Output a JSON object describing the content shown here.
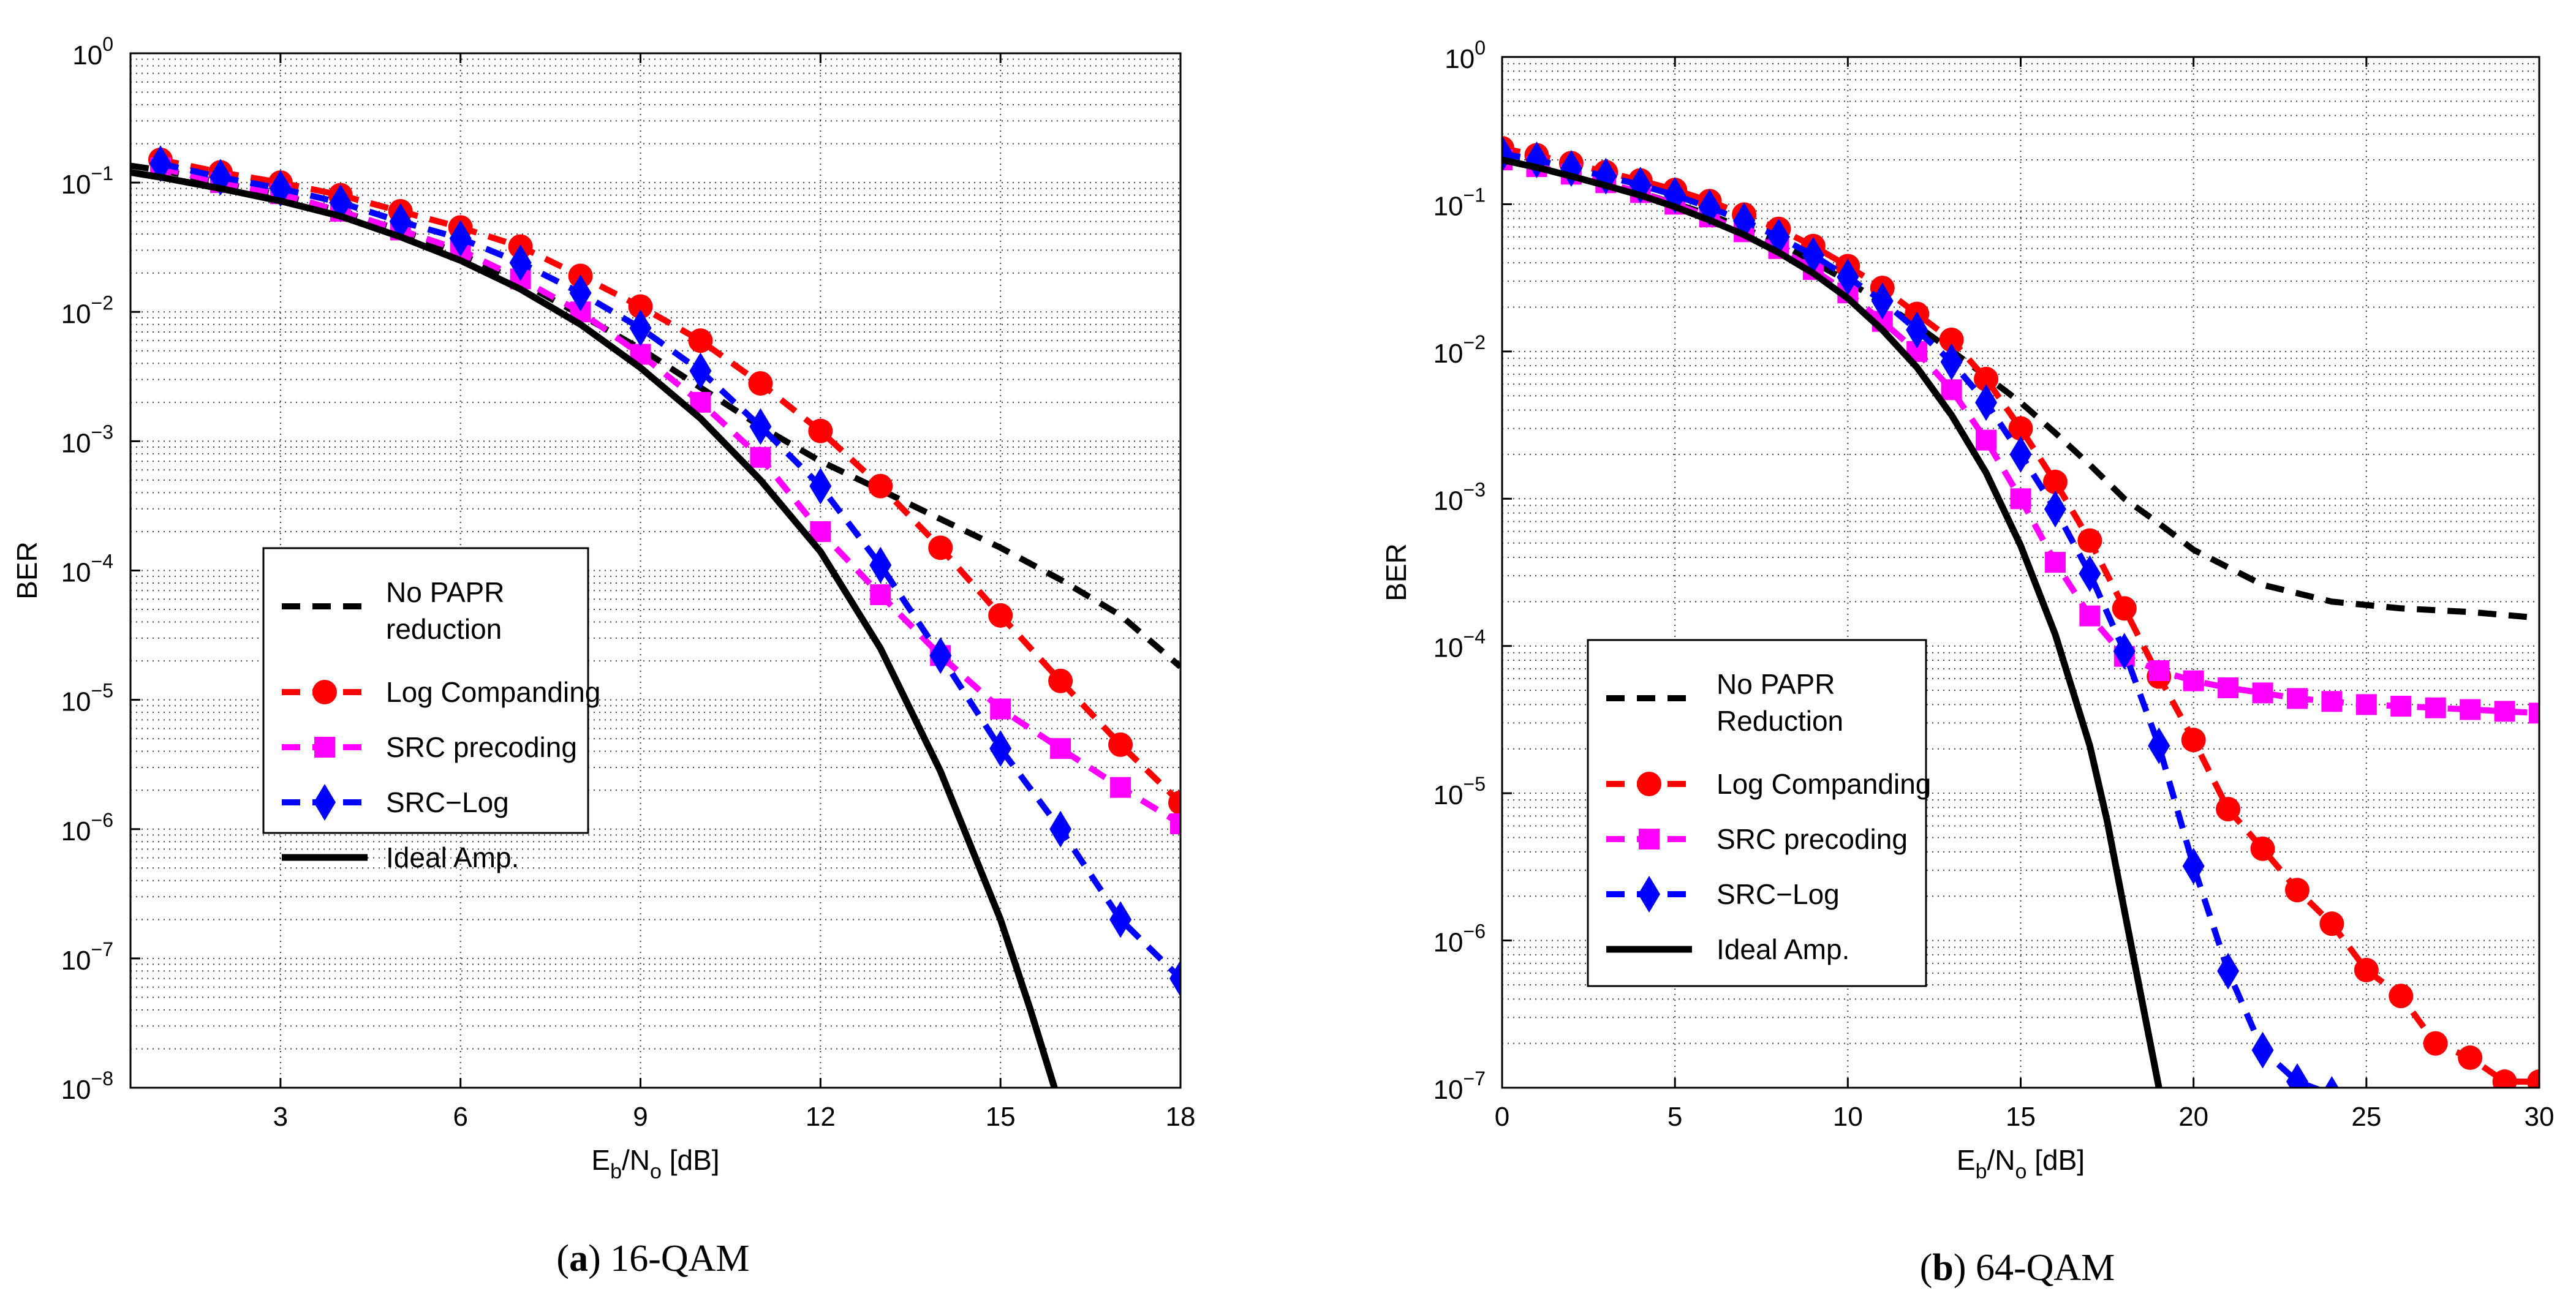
{
  "chart_data": [
    {
      "type": "line",
      "panel_label": "a",
      "caption": "16-QAM",
      "xlabel_base": "E",
      "xlabel_sub1": "b",
      "xlabel_mid": "/N",
      "xlabel_sub2": "o",
      "xlabel_unit": "[dB]",
      "ylabel": "BER",
      "yscale": "log",
      "xlim": [
        0.5,
        18
      ],
      "ylim": [
        1e-08,
        1
      ],
      "xticks": [
        3,
        6,
        9,
        12,
        15,
        18
      ],
      "ytick_exponents": [
        0,
        -1,
        -2,
        -3,
        -4,
        -5,
        -6,
        -7,
        -8
      ],
      "grid": true,
      "legend_position": "lower-left",
      "series": [
        {
          "name": "No PAPR reduction",
          "legend_lines": [
            "No PAPR",
            "reduction"
          ],
          "color": "#000000",
          "style": "dashed",
          "marker": "none",
          "x": [
            0.5,
            1,
            2,
            3,
            4,
            5,
            6,
            7,
            8,
            9,
            10,
            11,
            12,
            13,
            14,
            15,
            16,
            17,
            18
          ],
          "y": [
            0.135,
            0.125,
            0.1,
            0.08,
            0.06,
            0.043,
            0.028,
            0.017,
            0.0095,
            0.0052,
            0.0026,
            0.0013,
            0.0007,
            0.00042,
            0.00025,
            0.00015,
            8.5e-05,
            4.5e-05,
            1.8e-05
          ]
        },
        {
          "name": "Log Companding",
          "color": "#ff0000",
          "style": "dashed",
          "marker": "circle",
          "x": [
            1,
            2,
            3,
            4,
            5,
            6,
            7,
            8,
            9,
            10,
            11,
            12,
            13,
            14,
            15,
            16,
            17,
            18
          ],
          "y": [
            0.15,
            0.12,
            0.1,
            0.08,
            0.06,
            0.045,
            0.032,
            0.019,
            0.011,
            0.006,
            0.0028,
            0.0012,
            0.00045,
            0.00015,
            4.5e-05,
            1.4e-05,
            4.5e-06,
            1.6e-06
          ]
        },
        {
          "name": "SRC precoding",
          "color": "#ff00ff",
          "style": "dashed",
          "marker": "square",
          "x": [
            1,
            2,
            3,
            4,
            5,
            6,
            7,
            8,
            9,
            10,
            11,
            12,
            13,
            14,
            15,
            16,
            17,
            18
          ],
          "y": [
            0.13,
            0.1,
            0.082,
            0.06,
            0.043,
            0.03,
            0.018,
            0.01,
            0.0047,
            0.002,
            0.00075,
            0.0002,
            6.5e-05,
            2.2e-05,
            8.5e-06,
            4.2e-06,
            2.1e-06,
            1.1e-06
          ]
        },
        {
          "name": "SRC−Log",
          "color": "#0000ff",
          "style": "dashed",
          "marker": "diamond",
          "x": [
            1,
            2,
            3,
            4,
            5,
            6,
            7,
            8,
            9,
            10,
            11,
            12,
            13,
            14,
            15,
            16,
            17,
            18
          ],
          "y": [
            0.14,
            0.11,
            0.09,
            0.07,
            0.05,
            0.037,
            0.024,
            0.014,
            0.0075,
            0.0035,
            0.0013,
            0.00045,
            0.00011,
            2.2e-05,
            4.2e-06,
            1e-06,
            2e-07,
            7e-08
          ]
        },
        {
          "name": "Ideal Amp.",
          "color": "#000000",
          "style": "solid",
          "marker": "none",
          "x": [
            0.5,
            1,
            2,
            3,
            4,
            5,
            6,
            7,
            8,
            9,
            10,
            11,
            12,
            13,
            14,
            15,
            15.5,
            15.9
          ],
          "y": [
            0.12,
            0.11,
            0.09,
            0.072,
            0.055,
            0.038,
            0.025,
            0.015,
            0.008,
            0.0037,
            0.0015,
            0.0005,
            0.00014,
            2.5e-05,
            2.8e-06,
            2e-07,
            4e-08,
            1e-08
          ]
        }
      ]
    },
    {
      "type": "line",
      "panel_label": "b",
      "caption": "64-QAM",
      "xlabel_base": "E",
      "xlabel_sub1": "b",
      "xlabel_mid": "/N",
      "xlabel_sub2": "o",
      "xlabel_unit": "[dB]",
      "ylabel": "BER",
      "yscale": "log",
      "xlim": [
        0,
        30
      ],
      "ylim": [
        1e-07,
        1
      ],
      "xticks": [
        0,
        5,
        10,
        15,
        20,
        25,
        30
      ],
      "ytick_exponents": [
        0,
        -1,
        -2,
        -3,
        -4,
        -5,
        -6,
        -7
      ],
      "grid": true,
      "legend_position": "lower-left",
      "series": [
        {
          "name": "No PAPR Reduction",
          "legend_lines": [
            "No PAPR",
            "Reduction"
          ],
          "color": "#000000",
          "style": "dashed",
          "marker": "none",
          "x": [
            0,
            2,
            4,
            6,
            8,
            10,
            12,
            14,
            15,
            16,
            17,
            18,
            19,
            20,
            22,
            24,
            26,
            28,
            30
          ],
          "y": [
            0.2,
            0.16,
            0.12,
            0.085,
            0.055,
            0.03,
            0.015,
            0.0068,
            0.0045,
            0.0028,
            0.0017,
            0.001,
            0.00068,
            0.00045,
            0.00026,
            0.0002,
            0.00018,
            0.00017,
            0.000155
          ]
        },
        {
          "name": "Log Companding",
          "color": "#ff0000",
          "style": "dashed",
          "marker": "circle",
          "x": [
            0,
            1,
            2,
            3,
            4,
            5,
            6,
            7,
            8,
            9,
            10,
            11,
            12,
            13,
            14,
            15,
            16,
            17,
            18,
            19,
            20,
            21,
            22,
            23,
            24,
            25,
            26,
            27,
            28,
            29,
            30
          ],
          "y": [
            0.24,
            0.215,
            0.19,
            0.165,
            0.145,
            0.125,
            0.105,
            0.085,
            0.068,
            0.052,
            0.038,
            0.027,
            0.018,
            0.012,
            0.0065,
            0.003,
            0.0013,
            0.00052,
            0.00018,
            6.2e-05,
            2.3e-05,
            7.8e-06,
            4.2e-06,
            2.2e-06,
            1.3e-06,
            6.3e-07,
            4.2e-07,
            2e-07,
            1.6e-07,
            1.1e-07,
            1.1e-07
          ]
        },
        {
          "name": "SRC precoding",
          "color": "#ff00ff",
          "style": "dashed",
          "marker": "square",
          "x": [
            0,
            1,
            2,
            3,
            4,
            5,
            6,
            7,
            8,
            9,
            10,
            11,
            12,
            13,
            14,
            15,
            16,
            17,
            18,
            19,
            20,
            21,
            22,
            23,
            24,
            25,
            26,
            27,
            28,
            29,
            30
          ],
          "y": [
            0.2,
            0.18,
            0.16,
            0.14,
            0.12,
            0.1,
            0.082,
            0.065,
            0.05,
            0.036,
            0.025,
            0.016,
            0.01,
            0.0055,
            0.0025,
            0.001,
            0.00037,
            0.00016,
            8.5e-05,
            6.8e-05,
            5.8e-05,
            5.2e-05,
            4.8e-05,
            4.4e-05,
            4.2e-05,
            4e-05,
            3.9e-05,
            3.8e-05,
            3.7e-05,
            3.6e-05,
            3.5e-05
          ]
        },
        {
          "name": "SRC−Log",
          "color": "#0000ff",
          "style": "dashed",
          "marker": "diamond",
          "x": [
            0,
            1,
            2,
            3,
            4,
            5,
            6,
            7,
            8,
            9,
            10,
            11,
            12,
            13,
            14,
            15,
            16,
            17,
            18,
            19,
            20,
            21,
            22,
            23,
            24
          ],
          "y": [
            0.22,
            0.2,
            0.175,
            0.155,
            0.135,
            0.115,
            0.095,
            0.077,
            0.06,
            0.045,
            0.032,
            0.022,
            0.014,
            0.0085,
            0.0045,
            0.002,
            0.00085,
            0.00031,
            9.2e-05,
            2.1e-05,
            3.2e-06,
            6.2e-07,
            1.8e-07,
            1.1e-07,
            9e-08
          ]
        },
        {
          "name": "Ideal Amp.",
          "color": "#000000",
          "style": "solid",
          "marker": "none",
          "x": [
            0,
            1,
            2,
            3,
            4,
            5,
            6,
            7,
            8,
            9,
            10,
            11,
            12,
            13,
            14,
            15,
            16,
            17,
            17.5,
            18,
            18.5,
            19,
            19.5
          ],
          "y": [
            0.2,
            0.178,
            0.155,
            0.134,
            0.115,
            0.096,
            0.078,
            0.062,
            0.047,
            0.034,
            0.023,
            0.014,
            0.0078,
            0.0037,
            0.0015,
            0.00048,
            0.00012,
            2.1e-05,
            6.5e-06,
            1.6e-06,
            4e-07,
            1e-07,
            2e-08
          ]
        }
      ]
    }
  ]
}
